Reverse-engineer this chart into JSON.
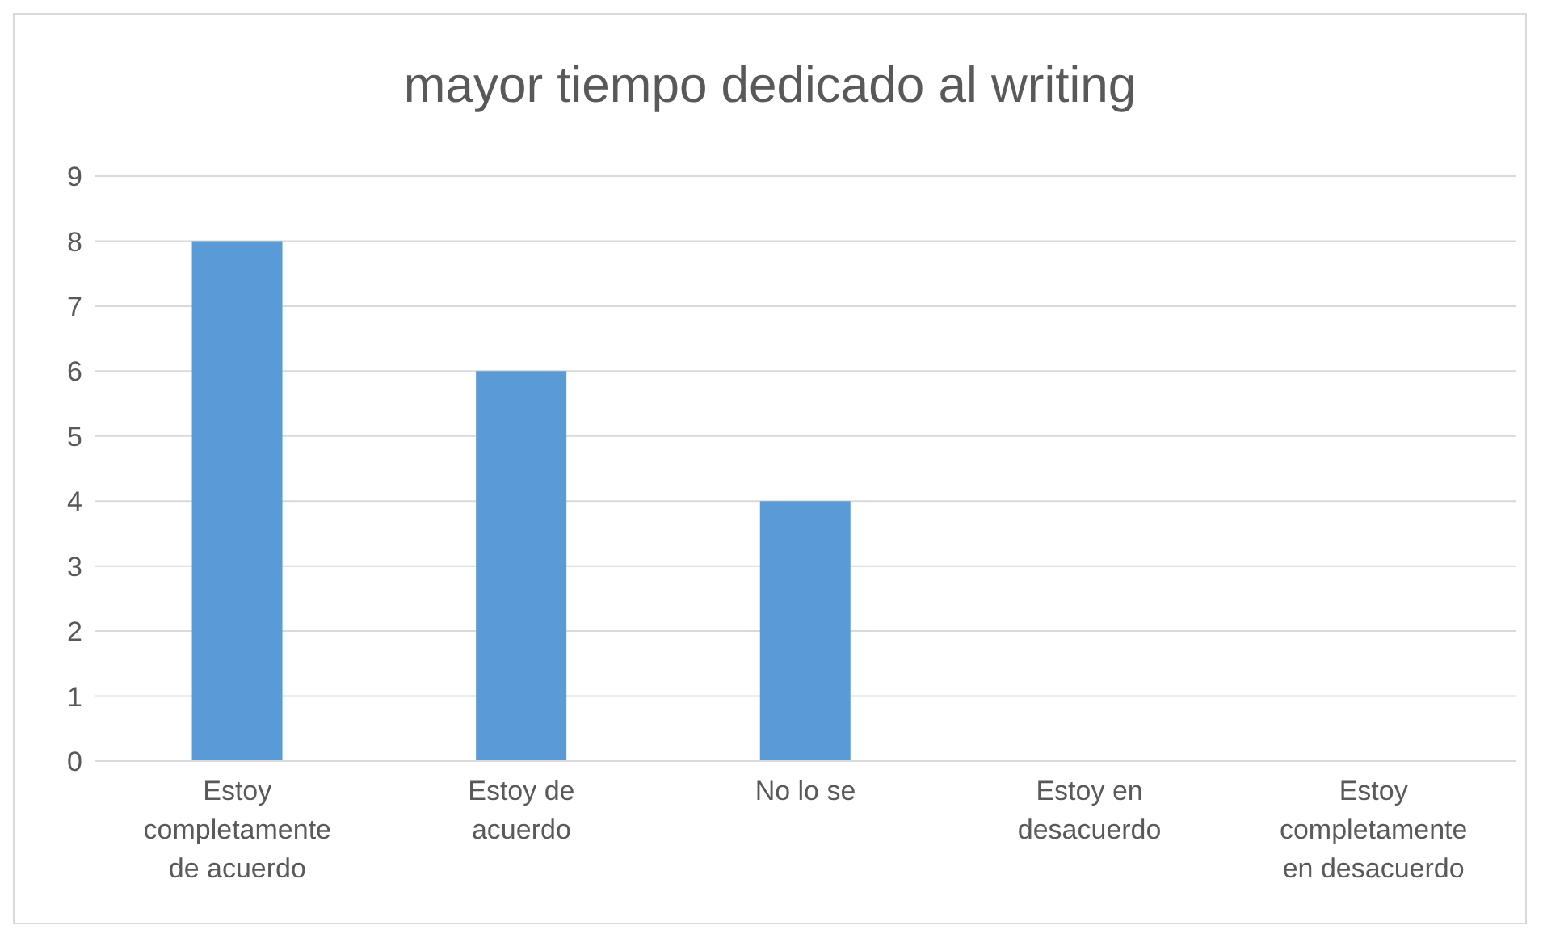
{
  "chart_data": {
    "type": "bar",
    "title": "mayor tiempo dedicado al writing",
    "categories": [
      "Estoy completamente de acuerdo",
      "Estoy de acuerdo",
      "No lo se",
      "Estoy en desacuerdo",
      "Estoy completamente en desacuerdo"
    ],
    "values": [
      8,
      6,
      4,
      0,
      0
    ],
    "color": "#5b9bd5",
    "ylim": [
      0,
      9
    ],
    "yticks": [
      0,
      1,
      2,
      3,
      4,
      5,
      6,
      7,
      8,
      9
    ],
    "grid": "y",
    "legend": false
  }
}
